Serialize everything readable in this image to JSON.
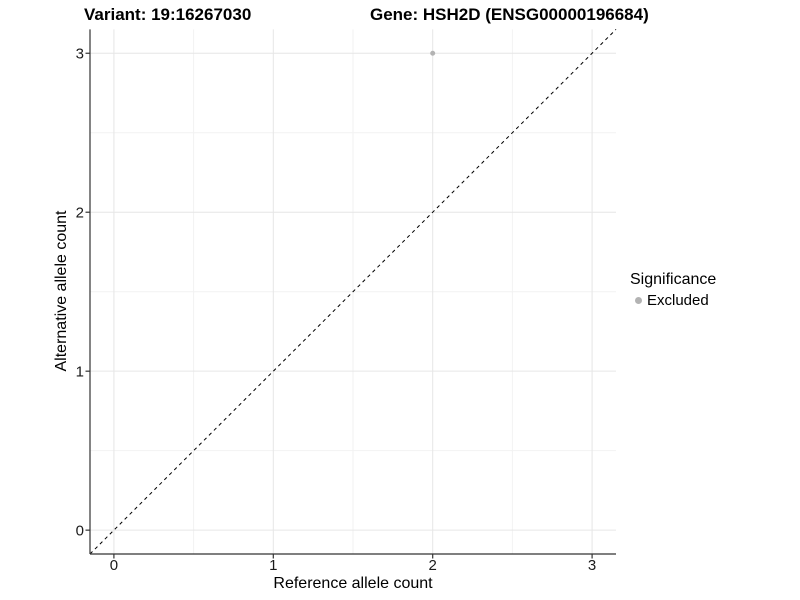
{
  "chart_data": {
    "type": "scatter",
    "title_left": "Variant: 19:16267030",
    "title_right": "Gene: HSH2D (ENSG00000196684)",
    "xlabel": "Reference allele count",
    "ylabel": "Alternative allele count",
    "xlim": [
      -0.15,
      3.15
    ],
    "ylim": [
      -0.15,
      3.15
    ],
    "x_ticks": [
      0,
      1,
      2,
      3
    ],
    "y_ticks": [
      0,
      1,
      2,
      3
    ],
    "x_minor_ticks": [
      0.5,
      1.5,
      2.5
    ],
    "y_minor_ticks": [
      0.5,
      1.5,
      2.5
    ],
    "grid": "on",
    "series": [
      {
        "name": "Excluded",
        "color": "#b3b3b3",
        "points": [
          {
            "x": 2,
            "y": 3
          }
        ]
      }
    ],
    "reference_line": {
      "type": "identity",
      "slope": 1,
      "intercept": 0,
      "style": "dashed",
      "color": "#000000"
    },
    "legend": {
      "title": "Significance",
      "position": "right",
      "entries": [
        {
          "label": "Excluded",
          "color": "#b3b3b3"
        }
      ]
    }
  },
  "styles": {
    "grid_major_color": "#e6e6e6",
    "grid_minor_color": "#f2f2f2",
    "axis_color": "#333333",
    "tick_label_color": "#1a1a1a",
    "panel_background": "#ffffff"
  }
}
